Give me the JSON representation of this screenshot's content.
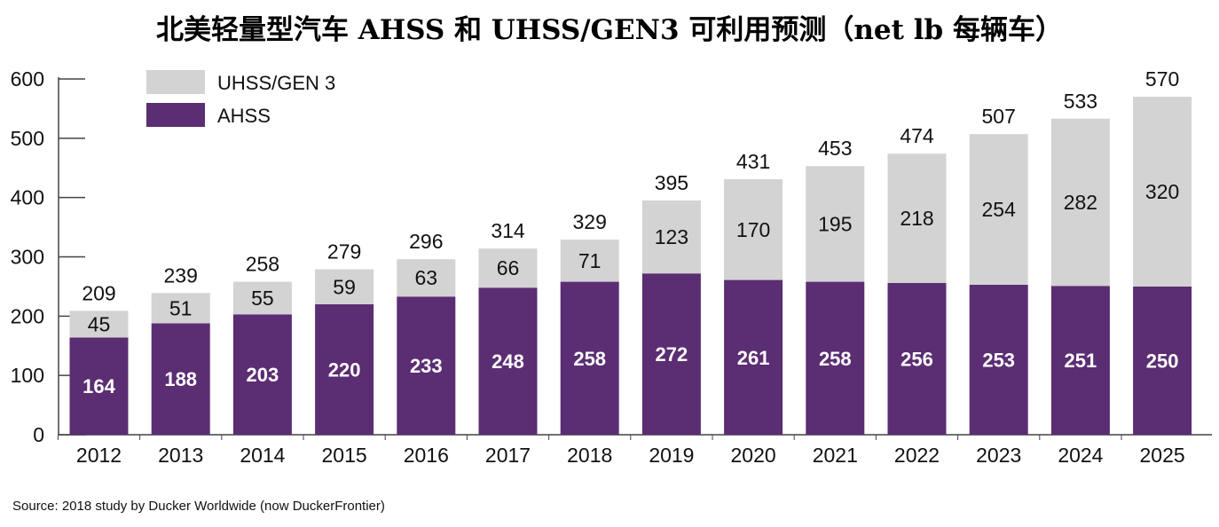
{
  "chart_data": {
    "type": "bar",
    "stacked": true,
    "title": "北美轻量型汽车 AHSS 和 UHSS/GEN3 可利用预测（net lb 每辆车）",
    "categories": [
      "2012",
      "2013",
      "2014",
      "2015",
      "2016",
      "2017",
      "2018",
      "2019",
      "2020",
      "2021",
      "2022",
      "2023",
      "2024",
      "2025"
    ],
    "series": [
      {
        "name": "AHSS",
        "values": [
          164,
          188,
          203,
          220,
          233,
          248,
          258,
          272,
          261,
          258,
          256,
          253,
          251,
          250
        ]
      },
      {
        "name": "UHSS/GEN 3",
        "values": [
          45,
          51,
          55,
          59,
          63,
          66,
          71,
          123,
          170,
          195,
          218,
          254,
          282,
          320
        ]
      }
    ],
    "totals": [
      209,
      239,
      258,
      279,
      296,
      314,
      329,
      395,
      431,
      453,
      474,
      507,
      533,
      570
    ],
    "ylim": [
      0,
      600
    ],
    "yticks": [
      0,
      100,
      200,
      300,
      400,
      500,
      600
    ],
    "legend": {
      "position": "top-left",
      "entries": [
        "UHSS/GEN 3",
        "AHSS"
      ]
    },
    "grid": false,
    "colors": {
      "AHSS": "#5b2d73",
      "UHSS/GEN 3": "#d3d3d3"
    },
    "source": "Source: 2018 study by Ducker Worldwide (now DuckerFrontier)"
  }
}
